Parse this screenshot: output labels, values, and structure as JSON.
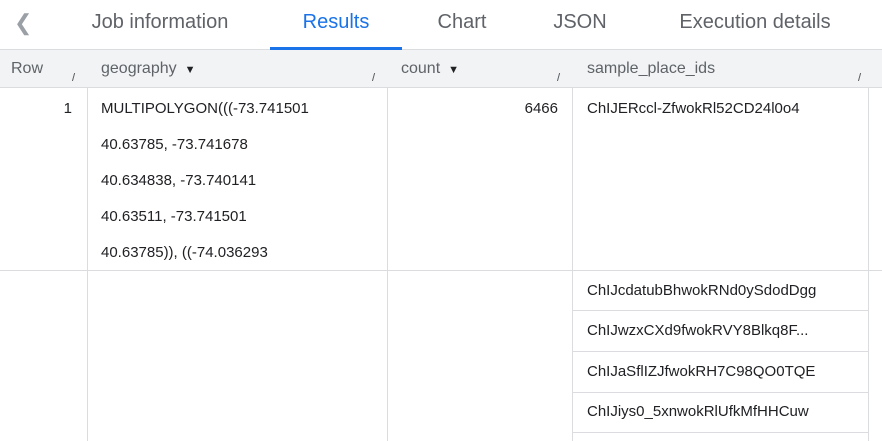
{
  "tabs": {
    "back_icon": "chevron-left-icon",
    "items": [
      {
        "label": "Job information"
      },
      {
        "label": "Results",
        "active": true
      },
      {
        "label": "Chart"
      },
      {
        "label": "JSON"
      },
      {
        "label": "Execution details"
      }
    ],
    "accent": "#1a73e8"
  },
  "columns": [
    {
      "label": "Row"
    },
    {
      "label": "geography",
      "sortable": true
    },
    {
      "label": "count",
      "sortable": true
    },
    {
      "label": "sample_place_ids"
    }
  ],
  "rows": [
    {
      "row": "1",
      "geography": [
        "MULTIPOLYGON(((-73.741501",
        "40.63785, -73.741678",
        "40.634838, -73.740141",
        "40.63511, -73.741501",
        "40.63785)), ((-74.036293"
      ],
      "count": "6466",
      "sample_place_ids": [
        "ChIJERccl-ZfwokRl52CD24l0o4",
        "ChIJcdatubBhwokRNd0ySdodDgg",
        "ChIJwzxCXd9fwokRVY8Blkq8F...",
        "ChIJaSflIZJfwokRH7C98QO0TQE",
        "ChIJiys0_5xnwokRlUfkMfHHCuw"
      ]
    }
  ]
}
